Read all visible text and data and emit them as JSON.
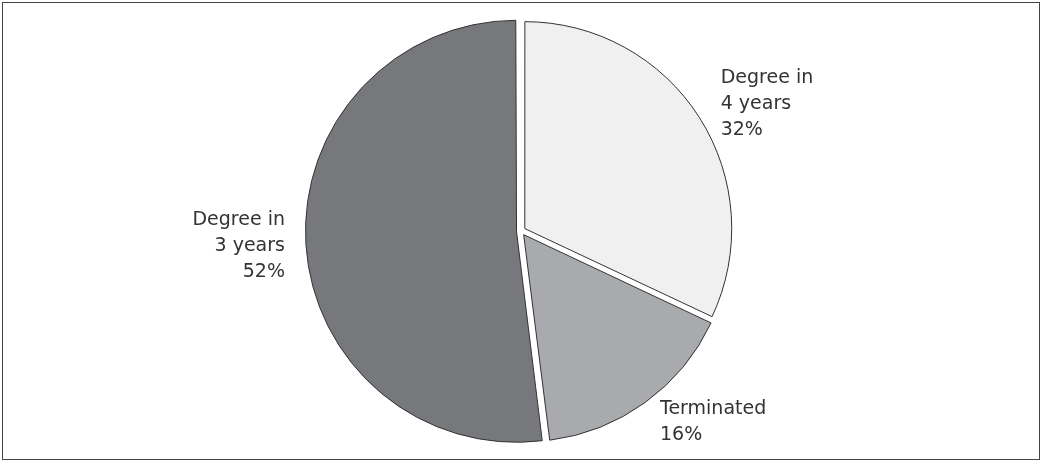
{
  "chart_data": {
    "type": "pie",
    "categories": [
      "Degree in 4 years",
      "Terminated",
      "Degree in 3 years"
    ],
    "values": [
      32,
      16,
      52
    ],
    "colors": [
      "#f0f0f0",
      "#a9aaad",
      "#77787c"
    ],
    "value_labels": [
      "32%",
      "16%",
      "52%"
    ],
    "legend": false
  }
}
